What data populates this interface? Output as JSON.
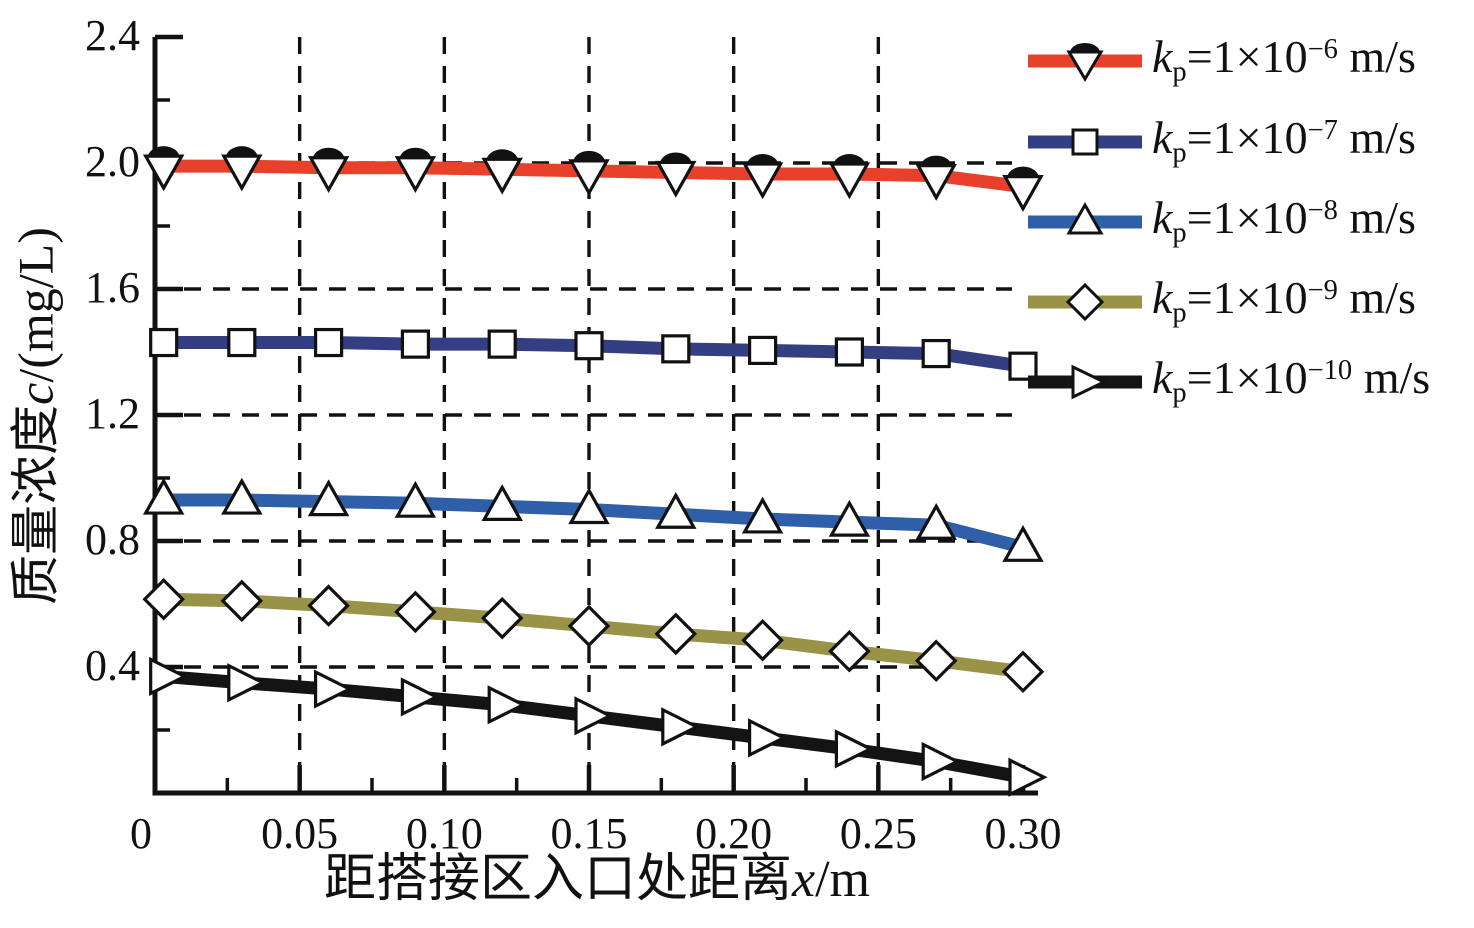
{
  "figure": {
    "background": "#ffffff",
    "text_color": "#111111"
  },
  "chart_data": {
    "type": "line",
    "title": "",
    "xlabel_parts": {
      "pre": "距搭接区入口处距离",
      "var": "x",
      "post": "/m"
    },
    "ylabel_parts": {
      "pre": "质量浓度",
      "var": "c",
      "post": "/(mg/L)"
    },
    "xlabel_text": "距搭接区入口处距离x/m",
    "ylabel_text": "质量浓度c/(mg/L)",
    "xlim": [
      0,
      0.3
    ],
    "ylim": [
      0,
      2.4
    ],
    "x_ticks": {
      "values": [
        0,
        0.05,
        0.1,
        0.15,
        0.2,
        0.25,
        0.3
      ],
      "labels": [
        "0",
        "0.05",
        "0.10",
        "0.15",
        "0.20",
        "0.25",
        "0.30"
      ]
    },
    "y_ticks": {
      "values": [
        0.4,
        0.8,
        1.2,
        1.6,
        2.0,
        2.4
      ],
      "labels": [
        "0.4",
        "0.8",
        "1.2",
        "1.6",
        "2.0",
        "2.4"
      ]
    },
    "x_minor_ticks": [
      0.025,
      0.075,
      0.125,
      0.175,
      0.225,
      0.275
    ],
    "y_minor_ticks": [
      0.2,
      0.6,
      1.0,
      1.4,
      1.8,
      2.2
    ],
    "grid": {
      "style": "dashed",
      "color": "#111111",
      "x_values": [
        0.05,
        0.1,
        0.15,
        0.2,
        0.25
      ],
      "y_values": [
        0.4,
        0.8,
        1.2,
        1.6,
        2.0
      ]
    },
    "legend_position": "upper-right-outside",
    "x": [
      0.003,
      0.03,
      0.06,
      0.09,
      0.12,
      0.15,
      0.18,
      0.21,
      0.24,
      0.27,
      0.3
    ],
    "series": [
      {
        "name": "kp=1×10−6 m/s",
        "label_parts": {
          "var": "k",
          "sub": "p",
          "eq": "=1×10",
          "exp": "−6",
          "unit": " m/s"
        },
        "color": "#e8402a",
        "marker": "triangle-down",
        "capped": true,
        "values": [
          1.99,
          1.99,
          1.985,
          1.985,
          1.98,
          1.975,
          1.97,
          1.965,
          1.965,
          1.96,
          1.925
        ]
      },
      {
        "name": "kp=1×10−7 m/s",
        "label_parts": {
          "var": "k",
          "sub": "p",
          "eq": "=1×10",
          "exp": "−7",
          "unit": " m/s"
        },
        "color": "#333f82",
        "marker": "square",
        "capped": false,
        "values": [
          1.43,
          1.43,
          1.43,
          1.425,
          1.425,
          1.42,
          1.41,
          1.405,
          1.4,
          1.395,
          1.355
        ]
      },
      {
        "name": "kp=1×10−8 m/s",
        "label_parts": {
          "var": "k",
          "sub": "p",
          "eq": "=1×10",
          "exp": "−8",
          "unit": " m/s"
        },
        "color": "#2f5fa8",
        "marker": "triangle-up",
        "capped": false,
        "values": [
          0.93,
          0.93,
          0.925,
          0.92,
          0.91,
          0.9,
          0.885,
          0.87,
          0.86,
          0.85,
          0.78
        ]
      },
      {
        "name": "kp=1×10−9 m/s",
        "label_parts": {
          "var": "k",
          "sub": "p",
          "eq": "=1×10",
          "exp": "−9",
          "unit": " m/s"
        },
        "color": "#999347",
        "marker": "diamond",
        "capped": false,
        "values": [
          0.615,
          0.61,
          0.595,
          0.575,
          0.555,
          0.53,
          0.505,
          0.485,
          0.45,
          0.42,
          0.385
        ]
      },
      {
        "name": "kp=1×10−10 m/s",
        "label_parts": {
          "var": "k",
          "sub": "p",
          "eq": "=1×10",
          "exp": "−10",
          "unit": " m/s"
        },
        "color": "#141414",
        "marker": "triangle-right",
        "capped": false,
        "values": [
          0.37,
          0.35,
          0.33,
          0.305,
          0.28,
          0.245,
          0.21,
          0.175,
          0.14,
          0.1,
          0.05
        ]
      }
    ]
  }
}
